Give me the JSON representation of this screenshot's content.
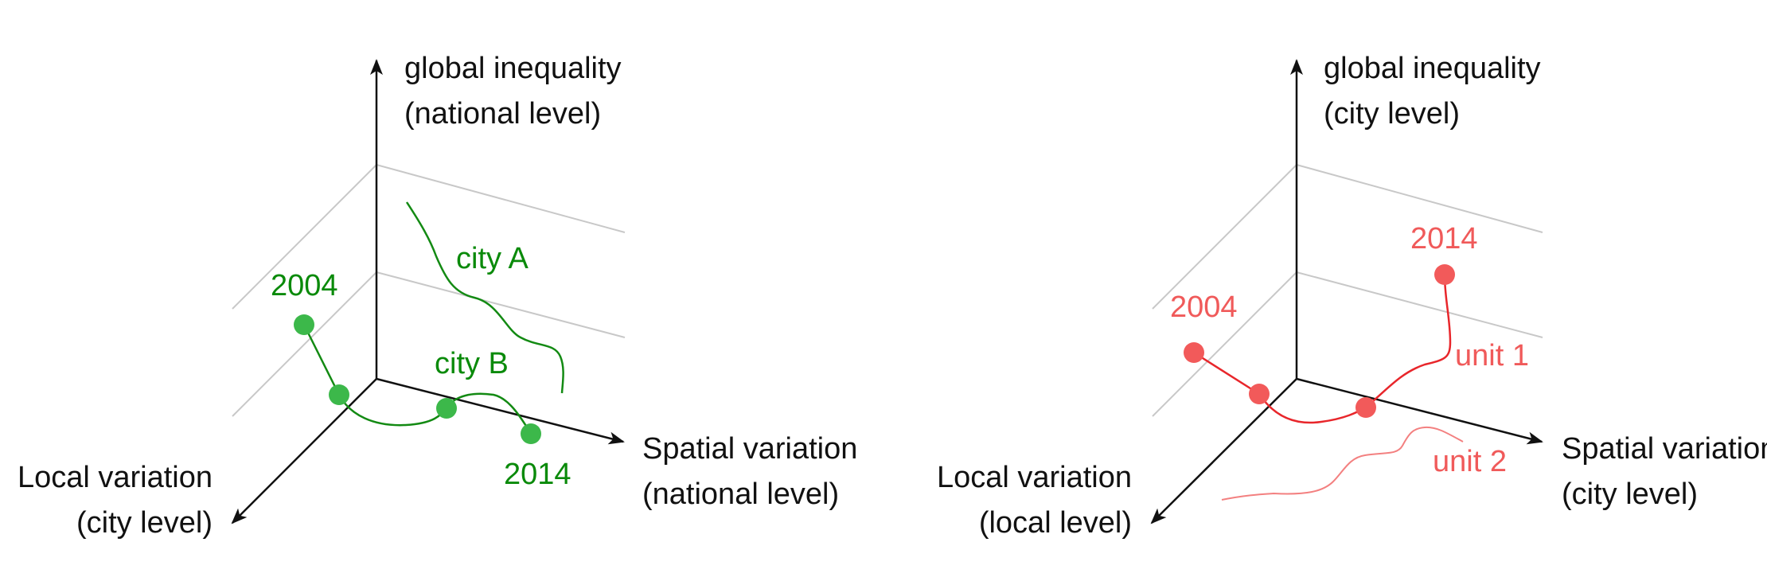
{
  "colors": {
    "axis": "#111111",
    "plane": "#c8c8c8",
    "green_line": "#138a13",
    "green_dot": "#3cb84a",
    "green_text": "#0a8a0a",
    "red_line": "#e8262b",
    "red_dot": "#f25a5a",
    "red_text": "#f05a5a",
    "red_light_line": "#f38080"
  },
  "left_diagram": {
    "vertical_axis": {
      "line1": "global inequality",
      "line2": "(national level)"
    },
    "right_axis": {
      "line1": "Spatial variation",
      "line2": "(national level)"
    },
    "depth_axis": {
      "line1": "Local variation",
      "line2": "(city level)"
    },
    "labels": {
      "city_a": "city A",
      "city_b": "city B",
      "year_start": "2004",
      "year_end": "2014"
    }
  },
  "right_diagram": {
    "vertical_axis": {
      "line1": "global inequality",
      "line2": "(city level)"
    },
    "right_axis": {
      "line1": "Spatial variation",
      "line2": "(city level)"
    },
    "depth_axis": {
      "line1": "Local variation",
      "line2": "(local level)"
    },
    "labels": {
      "unit_1": "unit 1",
      "unit_2": "unit 2",
      "year_start": "2004",
      "year_end": "2014"
    }
  }
}
